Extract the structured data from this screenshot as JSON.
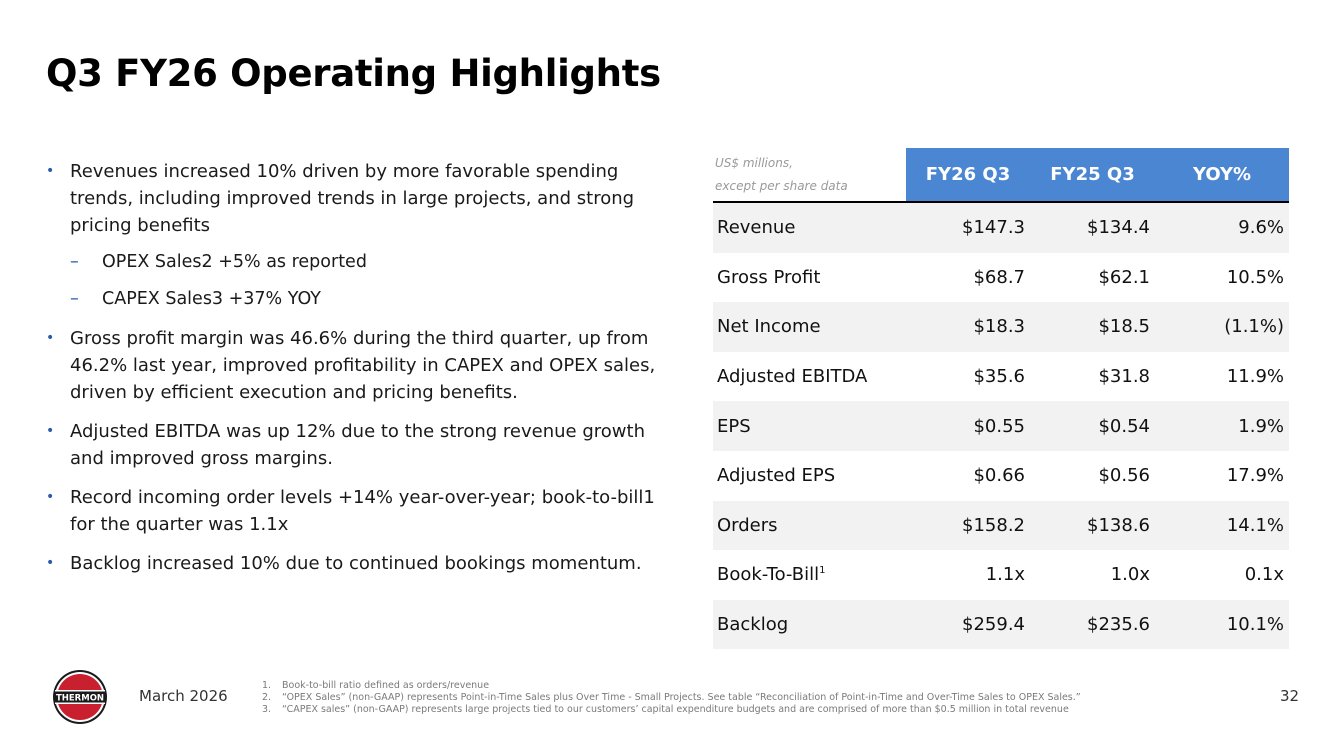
{
  "title": "Q3 FY26 Operating Highlights",
  "bullets": [
    {
      "text": "Revenues increased 10% driven by more favorable spending trends, including improved trends in large projects, and strong pricing benefits",
      "level": 1
    },
    {
      "text": "OPEX Sales2 +5% as reported",
      "level": 2
    },
    {
      "text": "CAPEX Sales3 +37% YOY",
      "level": 2
    },
    {
      "text": "Gross profit margin was 46.6% during the third quarter, up from 46.2% last year, improved profitability in CAPEX and OPEX sales, driven by efficient execution and pricing benefits.",
      "level": 1
    },
    {
      "text": "Adjusted EBITDA was up 12% due to the strong revenue growth and improved gross margins.",
      "level": 1
    },
    {
      "text": "Record incoming order levels +14% year-over-year; book-to-bill1 for the quarter was 1.1x",
      "level": 1
    },
    {
      "text": "Backlog increased 10% due to continued bookings momentum.",
      "level": 1
    }
  ],
  "table": {
    "note_line1": "US$ millions,",
    "note_line2": "except per share data",
    "headers": [
      "FY26 Q3",
      "FY25 Q3",
      "YOY%"
    ],
    "rows": [
      {
        "label": "Revenue",
        "sup": "",
        "values": [
          "$147.3",
          "$134.4",
          "9.6%"
        ]
      },
      {
        "label": "Gross Profit",
        "sup": "",
        "values": [
          "$68.7",
          "$62.1",
          "10.5%"
        ]
      },
      {
        "label": "Net Income",
        "sup": "",
        "values": [
          "$18.3",
          "$18.5",
          "(1.1%)"
        ]
      },
      {
        "label": "Adjusted EBITDA",
        "sup": "",
        "values": [
          "$35.6",
          "$31.8",
          "11.9%"
        ]
      },
      {
        "label": "EPS",
        "sup": "",
        "values": [
          "$0.55",
          "$0.54",
          "1.9%"
        ]
      },
      {
        "label": "Adjusted EPS",
        "sup": "",
        "values": [
          "$0.66",
          "$0.56",
          "17.9%"
        ]
      },
      {
        "label": "Orders",
        "sup": "",
        "values": [
          "$158.2",
          "$138.6",
          "14.1%"
        ]
      },
      {
        "label": "Book-To-Bill",
        "sup": "1",
        "values": [
          "1.1x",
          "1.0x",
          "0.1x"
        ]
      },
      {
        "label": "Backlog",
        "sup": "",
        "values": [
          "$259.4",
          "$235.6",
          "10.1%"
        ]
      }
    ]
  },
  "logo": {
    "text": "THERMON",
    "icon": "thermon-logo",
    "colors": {
      "red": "#c8202f",
      "dark": "#1a1a1a"
    }
  },
  "footer": {
    "date": "March 2026",
    "page": "32",
    "footnotes": [
      {
        "num": "1.",
        "text": "Book-to-bill ratio defined as orders/revenue"
      },
      {
        "num": "2.",
        "text": "“OPEX Sales” (non-GAAP) represents Point-in-Time Sales plus Over Time - Small Projects. See table “Reconciliation of Point-in-Time and Over-Time Sales to OPEX Sales.”"
      },
      {
        "num": "3.",
        "text": "“CAPEX sales” (non-GAAP) represents large projects tied to our customers’ capital expenditure budgets and are comprised of more than $0.5 million in total revenue"
      }
    ]
  },
  "colors": {
    "accent": "#4a86d1",
    "bullet": "#2b5aa8",
    "row_shade": "#f2f2f2"
  }
}
